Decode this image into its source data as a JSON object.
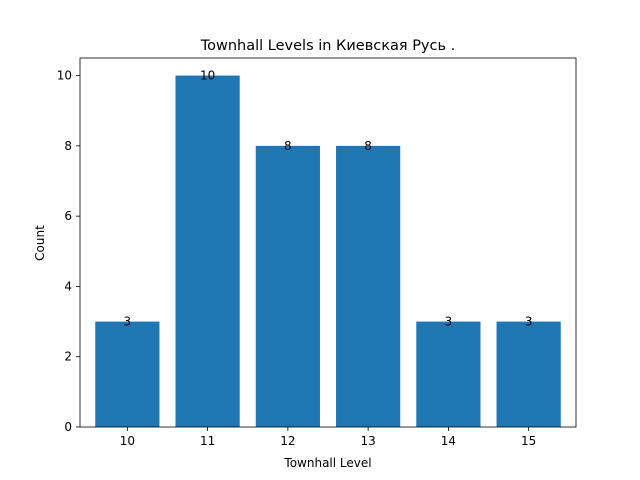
{
  "chart_data": {
    "type": "bar",
    "title": "Townhall Levels in Киевская Русь .",
    "xlabel": "Townhall Level",
    "ylabel": "Count",
    "categories": [
      "10",
      "11",
      "12",
      "13",
      "14",
      "15"
    ],
    "values": [
      3,
      10,
      8,
      8,
      3,
      3
    ],
    "ylim": [
      0,
      10.5
    ],
    "yticks": [
      0,
      2,
      4,
      6,
      8,
      10
    ],
    "grid": false,
    "bar_color": "#1f77b4"
  }
}
